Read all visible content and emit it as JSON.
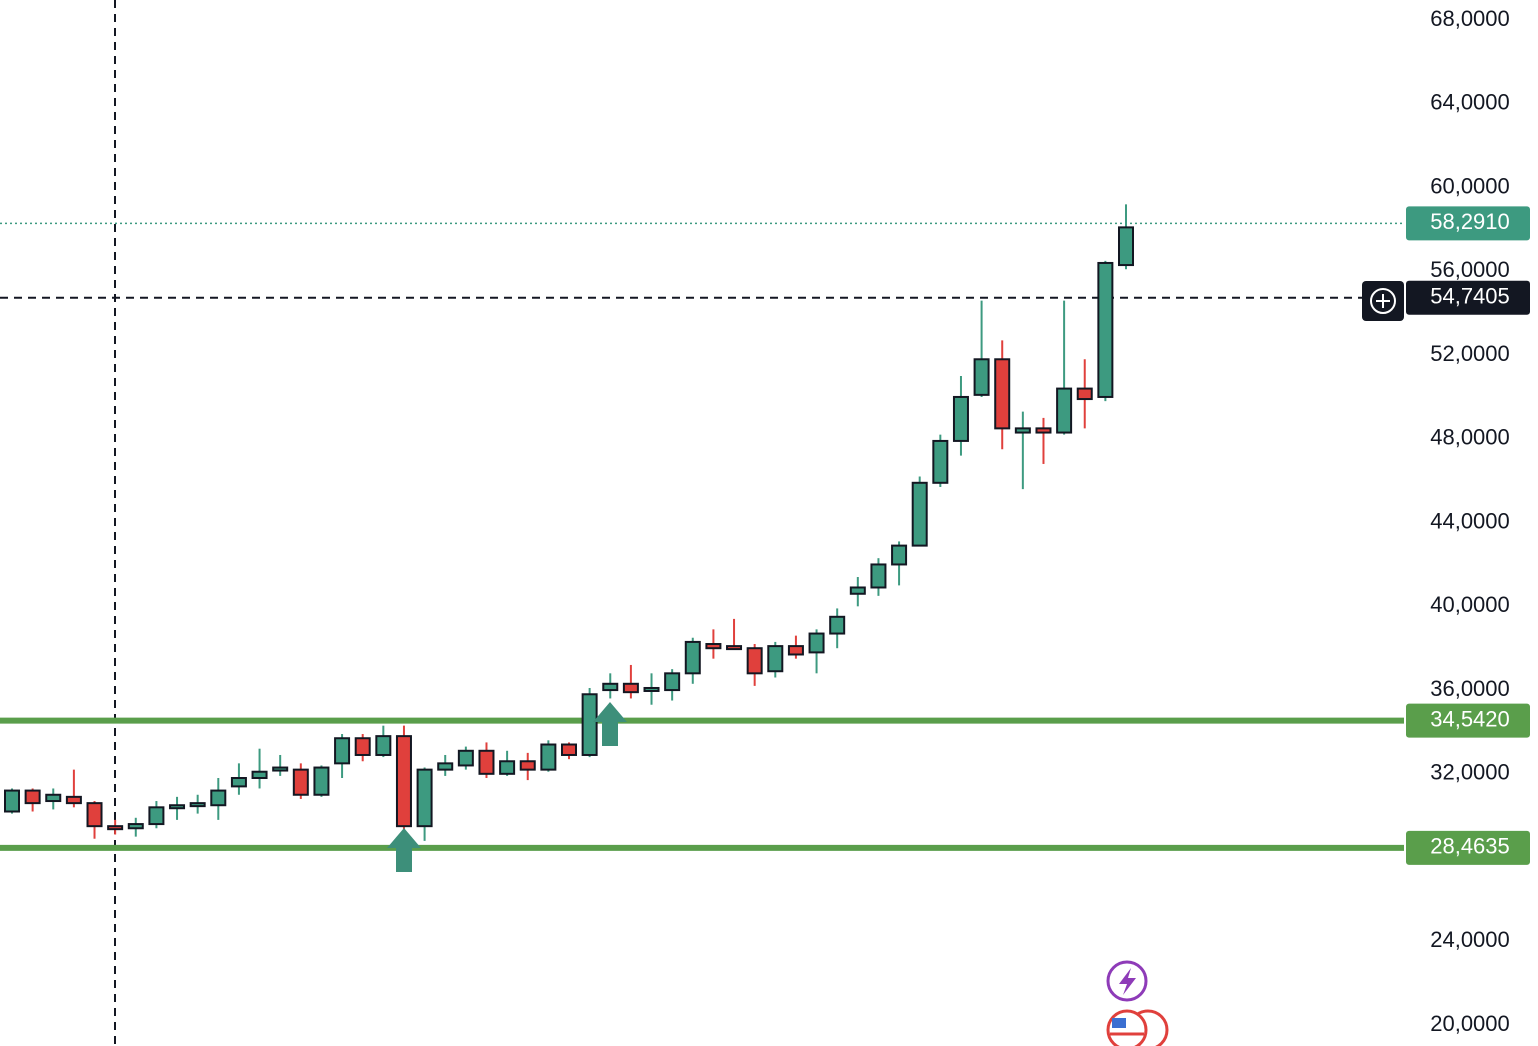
{
  "chart_data": {
    "type": "candlestick",
    "up_color": "#3d9a80",
    "down_color": "#e0403c",
    "ylim": [
      19,
      68.96
    ],
    "yticks": [
      {
        "value": 20,
        "label": "20,0000"
      },
      {
        "value": 24,
        "label": "24,0000"
      },
      {
        "value": 32,
        "label": "32,0000"
      },
      {
        "value": 36,
        "label": "36,0000"
      },
      {
        "value": 40,
        "label": "40,0000"
      },
      {
        "value": 44,
        "label": "44,0000"
      },
      {
        "value": 48,
        "label": "48,0000"
      },
      {
        "value": 52,
        "label": "52,0000"
      },
      {
        "value": 56,
        "label": "56,0000"
      },
      {
        "value": 60,
        "label": "60,0000"
      },
      {
        "value": 64,
        "label": "64,0000"
      },
      {
        "value": 68,
        "label": "68,0000"
      }
    ],
    "open": [
      30.2,
      31.2,
      30.7,
      30.9,
      30.6,
      29.5,
      29.4,
      29.6,
      30.4,
      30.5,
      30.5,
      31.4,
      31.8,
      32.2,
      32.2,
      31.0,
      32.5,
      33.7,
      32.9,
      33.8,
      29.5,
      32.2,
      32.4,
      33.1,
      32.0,
      32.6,
      32.2,
      33.4,
      32.9,
      36.0,
      36.3,
      36.0,
      36.0,
      36.8,
      38.2,
      38.1,
      38.0,
      36.9,
      38.1,
      37.8,
      38.7,
      40.6,
      40.9,
      42.0,
      42.9,
      45.9,
      47.9,
      50.1,
      51.8,
      48.3,
      48.5,
      48.3,
      50.4,
      50.0,
      56.3
    ],
    "high": [
      31.3,
      31.3,
      31.3,
      32.2,
      30.7,
      29.8,
      29.9,
      30.7,
      30.9,
      31.0,
      31.8,
      32.5,
      33.2,
      32.9,
      32.5,
      32.4,
      33.9,
      33.9,
      34.3,
      34.3,
      32.3,
      32.9,
      33.3,
      33.5,
      33.1,
      33.0,
      33.6,
      33.5,
      36.1,
      36.8,
      37.2,
      36.8,
      37.0,
      38.5,
      38.9,
      39.4,
      38.2,
      38.3,
      38.6,
      38.9,
      39.9,
      41.4,
      42.3,
      43.1,
      46.2,
      48.2,
      51.0,
      54.6,
      52.7,
      49.3,
      49.0,
      54.6,
      51.8,
      56.5,
      59.2
    ],
    "low": [
      30.1,
      30.2,
      30.3,
      30.4,
      28.9,
      29.1,
      29.0,
      29.4,
      29.8,
      30.1,
      29.8,
      31.0,
      31.3,
      31.9,
      30.8,
      30.9,
      31.8,
      32.6,
      32.8,
      29.3,
      28.8,
      31.9,
      32.2,
      31.8,
      31.9,
      31.7,
      32.1,
      32.7,
      32.8,
      35.6,
      35.6,
      35.3,
      35.5,
      36.3,
      37.5,
      38.0,
      36.2,
      36.6,
      37.5,
      36.8,
      38.0,
      40.0,
      40.5,
      41.0,
      42.9,
      45.7,
      47.2,
      50.0,
      47.5,
      45.6,
      46.8,
      48.2,
      48.5,
      49.8,
      56.1
    ],
    "close": [
      31.2,
      30.6,
      31.0,
      30.6,
      29.5,
      29.4,
      29.6,
      30.4,
      30.5,
      30.6,
      31.2,
      31.8,
      32.1,
      32.3,
      31.0,
      32.3,
      33.7,
      32.9,
      33.8,
      29.5,
      32.2,
      32.5,
      33.1,
      32.0,
      32.6,
      32.2,
      33.4,
      32.9,
      35.8,
      36.3,
      35.9,
      36.1,
      36.8,
      38.3,
      38.0,
      38.0,
      36.8,
      38.1,
      37.7,
      38.7,
      39.5,
      40.9,
      42.0,
      42.9,
      45.9,
      47.9,
      50.0,
      51.8,
      48.5,
      48.5,
      48.3,
      50.4,
      49.9,
      56.4,
      58.1
    ],
    "price_lines": [
      {
        "value": 58.291,
        "label": "58,2910",
        "color": "#3d9a80",
        "style": "dotted"
      },
      {
        "value": 54.7405,
        "label": "54,7405",
        "color": "#131722",
        "style": "dashed"
      },
      {
        "value": 34.542,
        "label": "34,5420",
        "color": "#5a9e4b",
        "style": "solid"
      },
      {
        "value": 28.4635,
        "label": "28,4635",
        "color": "#5a9e4b",
        "style": "solid"
      }
    ]
  }
}
